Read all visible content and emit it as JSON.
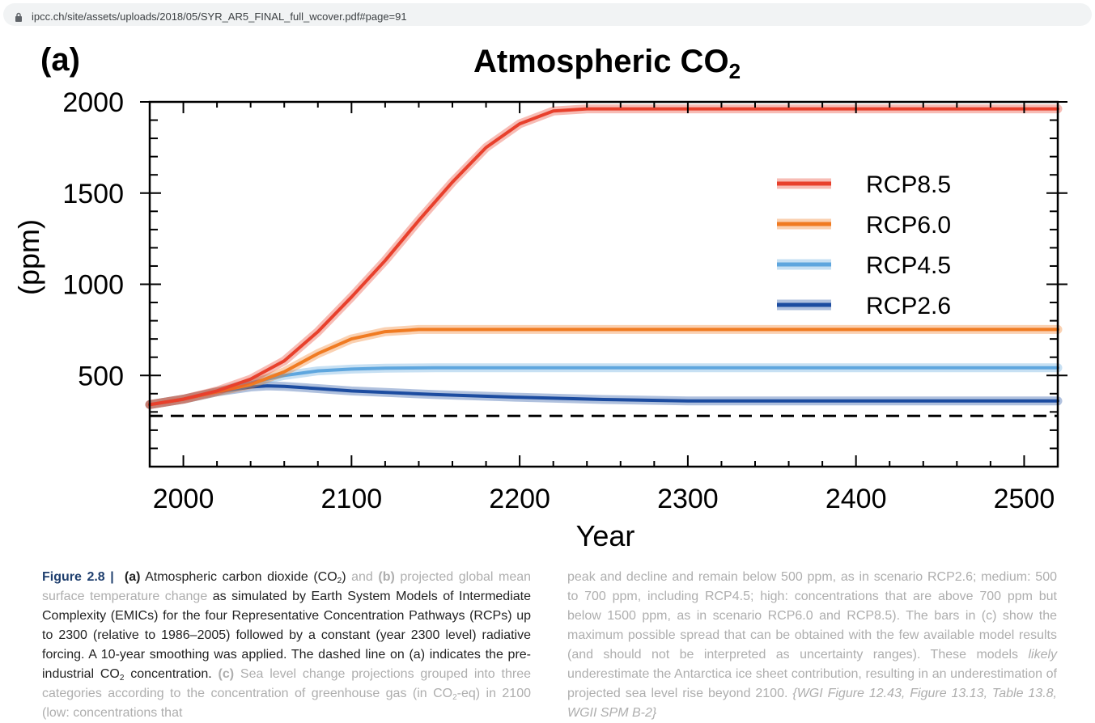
{
  "browser": {
    "url": "ipcc.ch/site/assets/uploads/2018/05/SYR_AR5_FINAL_full_wcover.pdf#page=91",
    "lock_icon": "lock-icon"
  },
  "figure": {
    "panel_label": "(a)",
    "title_main": "Atmospheric CO",
    "title_sub": "2"
  },
  "chart_data": {
    "type": "line",
    "xlabel": "Year",
    "ylabel": "(ppm)",
    "xlim": [
      1980,
      2520
    ],
    "ylim": [
      0,
      2000
    ],
    "xticks": [
      2000,
      2100,
      2200,
      2300,
      2400,
      2500
    ],
    "yticks": [
      500,
      1000,
      1500,
      2000
    ],
    "grid": false,
    "legend_position": "upper-right",
    "preindustrial_line": {
      "value": 278,
      "style": "dashed",
      "color": "#000000"
    },
    "series": [
      {
        "name": "RCP8.5",
        "color": "#e8402c",
        "x": [
          1980,
          2000,
          2020,
          2040,
          2060,
          2080,
          2100,
          2120,
          2140,
          2160,
          2180,
          2200,
          2220,
          2240,
          2260,
          2300,
          2400,
          2520
        ],
        "y": [
          340,
          370,
          415,
          480,
          580,
          740,
          930,
          1130,
          1350,
          1560,
          1750,
          1880,
          1950,
          1962,
          1962,
          1962,
          1962,
          1962
        ]
      },
      {
        "name": "RCP6.0",
        "color": "#f07b22",
        "x": [
          1980,
          2000,
          2020,
          2040,
          2060,
          2080,
          2100,
          2120,
          2140,
          2160,
          2200,
          2300,
          2400,
          2520
        ],
        "y": [
          340,
          370,
          410,
          450,
          520,
          620,
          700,
          740,
          752,
          752,
          752,
          752,
          752,
          752
        ]
      },
      {
        "name": "RCP4.5",
        "color": "#5ea6de",
        "x": [
          1980,
          2000,
          2020,
          2040,
          2060,
          2080,
          2100,
          2120,
          2150,
          2200,
          2300,
          2400,
          2520
        ],
        "y": [
          340,
          370,
          410,
          460,
          500,
          525,
          535,
          540,
          542,
          542,
          542,
          542,
          542
        ]
      },
      {
        "name": "RCP2.6",
        "color": "#1c4ca0",
        "x": [
          1980,
          2000,
          2020,
          2040,
          2050,
          2060,
          2080,
          2100,
          2150,
          2200,
          2250,
          2300,
          2400,
          2520
        ],
        "y": [
          340,
          370,
          410,
          437,
          443,
          440,
          428,
          415,
          395,
          380,
          368,
          360,
          360,
          360
        ]
      }
    ]
  },
  "caption_left": {
    "fig_label": "Figure 2.8 |",
    "a_label": "(a)",
    "t1": "Atmospheric carbon dioxide (CO",
    "sub1": "2",
    "t2": ")",
    "t3": "and",
    "b_label": "(b)",
    "t4": "projected global mean surface temperature change",
    "t5": "as simulated by Earth System Models of Intermediate Complexity (EMICs) for the four Representative Concentration Pathways (RCPs) up to 2300 (relative to 1986–2005) followed by a constant (year 2300 level) radiative forcing. A 10-year smoothing was applied. The dashed line on (a) indicates the pre-industrial CO",
    "sub2": "2",
    "t6": "concentration.",
    "c_label": "(c)",
    "t7": "Sea level change projections grouped into three categories according to the concentration of greenhouse gas (in CO",
    "sub3": "2",
    "t8": "-eq) in 2100 (low: concentrations that"
  },
  "caption_right": {
    "t1": "peak and decline and remain below 500 ppm, as in scenario RCP2.6; medium: 500 to 700 ppm, including RCP4.5; high: concentrations that are above 700 ppm but below 1500 ppm, as in scenario RCP6.0 and RCP8.5). The bars in (c) show the maximum possible spread that can be obtained with the few available model results (and should not be interpreted as uncertainty ranges). These models",
    "likely": "likely",
    "t2": "underestimate the Antarctica ice sheet contribution, resulting in an underestimation of projected sea level rise beyond 2100.",
    "refs": "{WGI Figure 12.43, Figure 13.13, Table 13.8, WGII SPM B-2}"
  }
}
